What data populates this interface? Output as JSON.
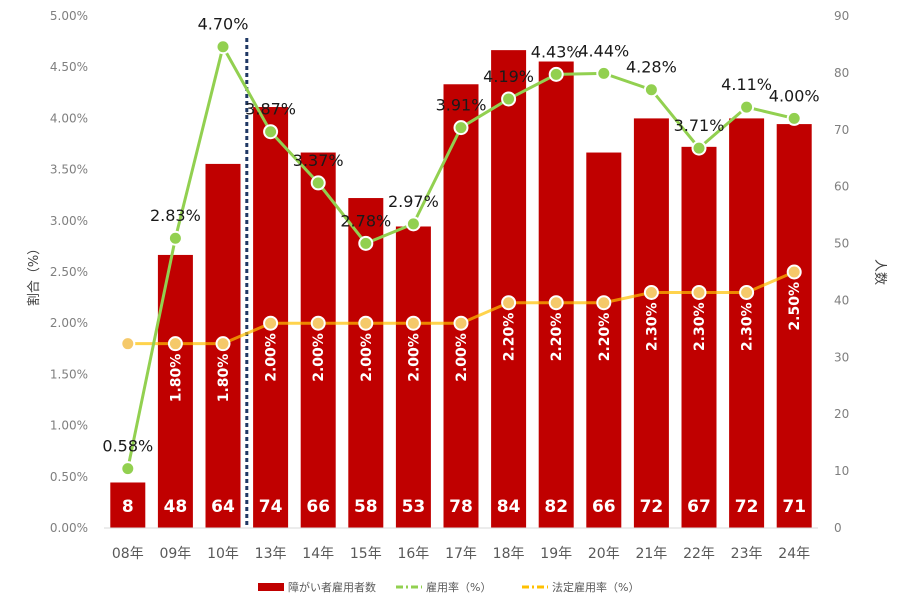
{
  "chart_data": {
    "type": "bar",
    "categories": [
      "08年",
      "09年",
      "10年",
      "13年",
      "14年",
      "15年",
      "16年",
      "17年",
      "18年",
      "19年",
      "20年",
      "21年",
      "22年",
      "23年",
      "24年"
    ],
    "series": [
      {
        "name": "障がい者雇用者数",
        "kind": "bar",
        "axis": "right",
        "color": "#c00000",
        "values": [
          8,
          48,
          64,
          74,
          66,
          58,
          53,
          78,
          84,
          82,
          66,
          72,
          67,
          72,
          71
        ],
        "labels": [
          "8",
          "48",
          "64",
          "74",
          "66",
          "58",
          "53",
          "78",
          "84",
          "82",
          "66",
          "72",
          "67",
          "72",
          "71"
        ]
      },
      {
        "name": "雇用率（%）",
        "kind": "line",
        "axis": "left",
        "color": "#92d050",
        "values": [
          0.58,
          2.83,
          4.7,
          3.87,
          3.37,
          2.78,
          2.97,
          3.91,
          4.19,
          4.43,
          4.44,
          4.28,
          3.71,
          4.11,
          4.0
        ],
        "labels": [
          "0.58%",
          "2.83%",
          "4.70%",
          "3.87%",
          "3.37%",
          "2.78%",
          "2.97%",
          "3.91%",
          "4.19%",
          "4.43%",
          "4.44%",
          "4.28%",
          "3.71%",
          "4.11%",
          "4.00%"
        ]
      },
      {
        "name": "法定雇用率（%）",
        "kind": "line",
        "axis": "left",
        "color": "#ffc000",
        "values": [
          1.8,
          1.8,
          1.8,
          2.0,
          2.0,
          2.0,
          2.0,
          2.0,
          2.2,
          2.2,
          2.2,
          2.3,
          2.3,
          2.3,
          2.5
        ],
        "labels": [
          "",
          "1.80%",
          "1.80%",
          "2.00%",
          "2.00%",
          "2.00%",
          "2.00%",
          "2.00%",
          "2.20%",
          "2.20%",
          "2.20%",
          "2.30%",
          "2.30%",
          "2.30%",
          "2.50%"
        ]
      }
    ],
    "y_left": {
      "label": "割合（%）",
      "range": [
        0,
        5
      ],
      "ticks": [
        0,
        0.5,
        1,
        1.5,
        2,
        2.5,
        3,
        3.5,
        4,
        4.5,
        5
      ],
      "tick_labels": [
        "0.00%",
        "0.50%",
        "1.00%",
        "1.50%",
        "2.00%",
        "2.50%",
        "3.00%",
        "3.50%",
        "4.00%",
        "4.50%",
        "5.00%"
      ]
    },
    "y_right": {
      "label": "人数",
      "range": [
        0,
        90
      ],
      "ticks": [
        0,
        10,
        20,
        30,
        40,
        50,
        60,
        70,
        80,
        90
      ],
      "tick_labels": [
        "0",
        "10",
        "20",
        "30",
        "40",
        "50",
        "60",
        "70",
        "80",
        "90"
      ]
    },
    "divider_after_category": "10年",
    "grid": false,
    "legend_position": "bottom"
  }
}
